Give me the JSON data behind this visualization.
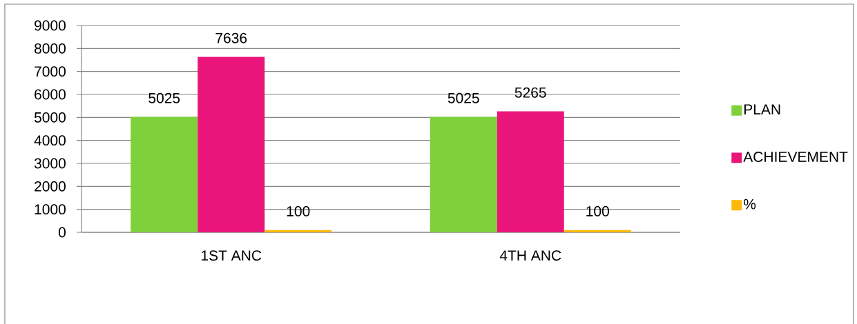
{
  "chart_data": {
    "type": "bar",
    "categories": [
      "1ST ANC",
      "4TH ANC"
    ],
    "series": [
      {
        "name": "PLAN",
        "color": "#7fd13b",
        "values": [
          5025,
          5025
        ]
      },
      {
        "name": "ACHIEVEMENT",
        "color": "#ea157a",
        "values": [
          7636,
          5265
        ]
      },
      {
        "name": "%",
        "color": "#feb80a",
        "values": [
          100,
          100
        ]
      }
    ],
    "ylim": [
      0,
      9000
    ],
    "yticks": [
      0,
      1000,
      2000,
      3000,
      4000,
      5000,
      6000,
      7000,
      8000,
      9000
    ],
    "grid": "y",
    "legend": "right",
    "data_labels": true
  }
}
